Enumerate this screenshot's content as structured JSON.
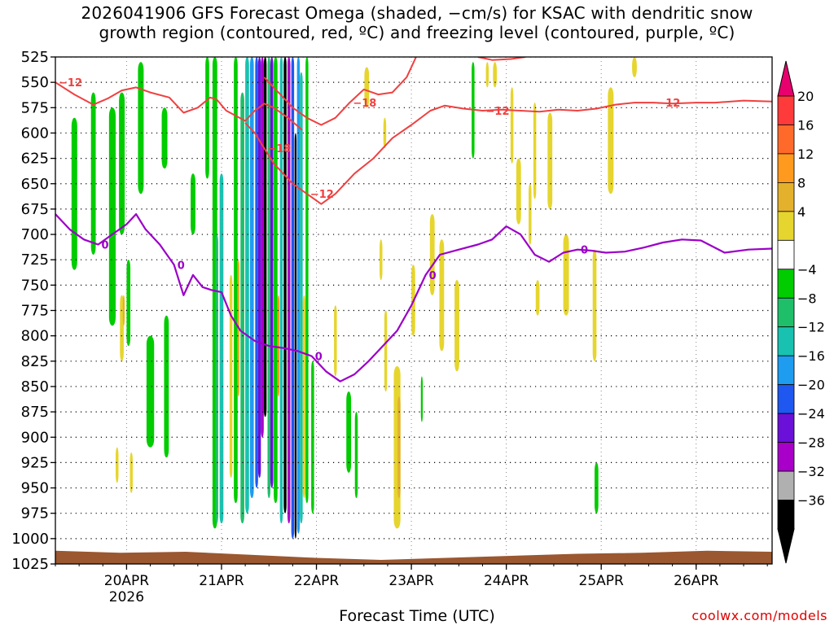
{
  "chart_data": {
    "type": "heatmap",
    "title_line1": "2026041906 GFS Forecast Omega (shaded, −cm/s) for KSAC with dendritic snow",
    "title_line2": "growth region (contoured, red, ºC) and freezing level (contoured, purple, ºC)",
    "xlabel": "Forecast Time (UTC)",
    "ylabel": "",
    "credit": "coolwx.com/models",
    "y_axis": {
      "ticks": [
        "525",
        "550",
        "575",
        "600",
        "625",
        "650",
        "675",
        "700",
        "725",
        "750",
        "775",
        "800",
        "825",
        "850",
        "875",
        "900",
        "925",
        "950",
        "975",
        "1000",
        "1025"
      ],
      "range": [
        525,
        1025
      ],
      "units": "hPa"
    },
    "x_axis": {
      "ticks": [
        "20APR",
        "21APR",
        "22APR",
        "23APR",
        "24APR",
        "25APR",
        "26APR"
      ],
      "year_label": "2026",
      "range_days": [
        -0.75,
        6.8
      ]
    },
    "colorbar": {
      "labels": [
        "20",
        "16",
        "12",
        "8",
        "4",
        "−4",
        "−8",
        "−12",
        "−16",
        "−20",
        "−24",
        "−28",
        "−32",
        "−36"
      ],
      "colors": [
        "#ff3a3a",
        "#ff6a2a",
        "#ff9a1e",
        "#e3b12c",
        "#e6d52e",
        "#ffffff",
        "#00cc00",
        "#1fbf6a",
        "#19c2b0",
        "#1e9cf0",
        "#1e58f0",
        "#6a10d8",
        "#a800c8",
        "#b0b0b0",
        "#000000"
      ],
      "arrow_top": "#e8006e",
      "arrow_bottom": "#000000"
    },
    "omega_cells": [
      {
        "day": -0.55,
        "w": 0.06,
        "p0": 585,
        "p1": 735,
        "v": -8
      },
      {
        "day": -0.35,
        "w": 0.05,
        "p0": 560,
        "p1": 720,
        "v": -8
      },
      {
        "day": -0.15,
        "w": 0.07,
        "p0": 575,
        "p1": 790,
        "v": -8
      },
      {
        "day": -0.05,
        "w": 0.06,
        "p0": 560,
        "p1": 700,
        "v": -8
      },
      {
        "day": 0.02,
        "w": 0.04,
        "p0": 725,
        "p1": 810,
        "v": -8
      },
      {
        "day": 0.15,
        "w": 0.06,
        "p0": 530,
        "p1": 660,
        "v": -8
      },
      {
        "day": 0.25,
        "w": 0.08,
        "p0": 800,
        "p1": 910,
        "v": -8
      },
      {
        "day": 0.4,
        "w": 0.06,
        "p0": 575,
        "p1": 635,
        "v": -8
      },
      {
        "day": 0.42,
        "w": 0.05,
        "p0": 780,
        "p1": 920,
        "v": -8
      },
      {
        "day": -0.05,
        "w": 0.04,
        "p0": 760,
        "p1": 825,
        "v": 4
      },
      {
        "day": -0.03,
        "w": 0.02,
        "p0": 760,
        "p1": 790,
        "v": 8
      },
      {
        "day": -0.1,
        "w": 0.03,
        "p0": 910,
        "p1": 945,
        "v": 4
      },
      {
        "day": 0.05,
        "w": 0.03,
        "p0": 915,
        "p1": 955,
        "v": 4
      },
      {
        "day": 0.7,
        "w": 0.05,
        "p0": 640,
        "p1": 700,
        "v": -8
      },
      {
        "day": 0.85,
        "w": 0.04,
        "p0": 525,
        "p1": 645,
        "v": -8
      },
      {
        "day": 0.93,
        "w": 0.05,
        "p0": 525,
        "p1": 990,
        "v": -8
      },
      {
        "day": 0.95,
        "w": 0.03,
        "p0": 700,
        "p1": 985,
        "v": -12
      },
      {
        "day": 1.0,
        "w": 0.04,
        "p0": 640,
        "p1": 985,
        "v": -16
      },
      {
        "day": 1.1,
        "w": 0.03,
        "p0": 740,
        "p1": 940,
        "v": 4
      },
      {
        "day": 1.15,
        "w": 0.04,
        "p0": 525,
        "p1": 965,
        "v": -8
      },
      {
        "day": 1.18,
        "w": 0.02,
        "p0": 725,
        "p1": 860,
        "v": 8
      },
      {
        "day": 1.22,
        "w": 0.04,
        "p0": 560,
        "p1": 985,
        "v": -12
      },
      {
        "day": 1.27,
        "w": 0.04,
        "p0": 525,
        "p1": 975,
        "v": -16
      },
      {
        "day": 1.32,
        "w": 0.04,
        "p0": 525,
        "p1": 960,
        "v": -20
      },
      {
        "day": 1.37,
        "w": 0.03,
        "p0": 525,
        "p1": 950,
        "v": -24
      },
      {
        "day": 1.4,
        "w": 0.03,
        "p0": 525,
        "p1": 940,
        "v": -28
      },
      {
        "day": 1.43,
        "w": 0.03,
        "p0": 525,
        "p1": 900,
        "v": -32
      },
      {
        "day": 1.46,
        "w": 0.03,
        "p0": 525,
        "p1": 880,
        "v": -36
      },
      {
        "day": 1.5,
        "w": 0.03,
        "p0": 525,
        "p1": 960,
        "v": -12
      },
      {
        "day": 1.53,
        "w": 0.03,
        "p0": 525,
        "p1": 950,
        "v": -28
      },
      {
        "day": 1.57,
        "w": 0.04,
        "p0": 525,
        "p1": 965,
        "v": -8
      },
      {
        "day": 1.6,
        "w": 0.02,
        "p0": 760,
        "p1": 860,
        "v": 12
      },
      {
        "day": 1.63,
        "w": 0.03,
        "p0": 525,
        "p1": 985,
        "v": -16
      },
      {
        "day": 1.67,
        "w": 0.03,
        "p0": 525,
        "p1": 975,
        "v": -36
      },
      {
        "day": 1.71,
        "w": 0.03,
        "p0": 525,
        "p1": 985,
        "v": -32
      },
      {
        "day": 1.75,
        "w": 0.03,
        "p0": 525,
        "p1": 1000,
        "v": -24
      },
      {
        "day": 1.78,
        "w": 0.02,
        "p0": 600,
        "p1": 1000,
        "v": -36
      },
      {
        "day": 1.81,
        "w": 0.03,
        "p0": 525,
        "p1": 995,
        "v": -20
      },
      {
        "day": 1.84,
        "w": 0.03,
        "p0": 540,
        "p1": 985,
        "v": -16
      },
      {
        "day": 1.87,
        "w": 0.03,
        "p0": 760,
        "p1": 960,
        "v": 4
      },
      {
        "day": 1.9,
        "w": 0.03,
        "p0": 525,
        "p1": 965,
        "v": -8
      },
      {
        "day": 1.96,
        "w": 0.03,
        "p0": 825,
        "p1": 975,
        "v": -8
      },
      {
        "day": 2.2,
        "w": 0.03,
        "p0": 770,
        "p1": 840,
        "v": 4
      },
      {
        "day": 2.34,
        "w": 0.05,
        "p0": 855,
        "p1": 935,
        "v": -8
      },
      {
        "day": 2.42,
        "w": 0.03,
        "p0": 875,
        "p1": 960,
        "v": -8
      },
      {
        "day": 2.53,
        "w": 0.05,
        "p0": 535,
        "p1": 575,
        "v": 4
      },
      {
        "day": 2.68,
        "w": 0.03,
        "p0": 705,
        "p1": 745,
        "v": 4
      },
      {
        "day": 2.72,
        "w": 0.03,
        "p0": 585,
        "p1": 615,
        "v": 4
      },
      {
        "day": 2.73,
        "w": 0.03,
        "p0": 775,
        "p1": 855,
        "v": 4
      },
      {
        "day": 2.85,
        "w": 0.07,
        "p0": 830,
        "p1": 990,
        "v": 4
      },
      {
        "day": 2.87,
        "w": 0.03,
        "p0": 860,
        "p1": 960,
        "v": 8
      },
      {
        "day": 3.02,
        "w": 0.04,
        "p0": 730,
        "p1": 800,
        "v": 4
      },
      {
        "day": 3.22,
        "w": 0.05,
        "p0": 680,
        "p1": 760,
        "v": 4
      },
      {
        "day": 3.32,
        "w": 0.05,
        "p0": 705,
        "p1": 815,
        "v": 4
      },
      {
        "day": 3.48,
        "w": 0.05,
        "p0": 745,
        "p1": 835,
        "v": 4
      },
      {
        "day": 3.65,
        "w": 0.03,
        "p0": 530,
        "p1": 625,
        "v": -8
      },
      {
        "day": 3.8,
        "w": 0.03,
        "p0": 530,
        "p1": 555,
        "v": 4
      },
      {
        "day": 3.88,
        "w": 0.04,
        "p0": 530,
        "p1": 555,
        "v": 4
      },
      {
        "day": 4.06,
        "w": 0.03,
        "p0": 555,
        "p1": 630,
        "v": 4
      },
      {
        "day": 4.13,
        "w": 0.05,
        "p0": 625,
        "p1": 690,
        "v": 4
      },
      {
        "day": 4.25,
        "w": 0.03,
        "p0": 650,
        "p1": 710,
        "v": 4
      },
      {
        "day": 4.3,
        "w": 0.03,
        "p0": 570,
        "p1": 665,
        "v": 4
      },
      {
        "day": 4.33,
        "w": 0.04,
        "p0": 745,
        "p1": 780,
        "v": 4
      },
      {
        "day": 4.46,
        "w": 0.05,
        "p0": 580,
        "p1": 675,
        "v": 4
      },
      {
        "day": 4.63,
        "w": 0.06,
        "p0": 700,
        "p1": 780,
        "v": 4
      },
      {
        "day": 4.93,
        "w": 0.04,
        "p0": 715,
        "p1": 825,
        "v": 4
      },
      {
        "day": 5.1,
        "w": 0.06,
        "p0": 555,
        "p1": 660,
        "v": 4
      },
      {
        "day": 5.35,
        "w": 0.05,
        "p0": 525,
        "p1": 545,
        "v": 4
      },
      {
        "day": 3.11,
        "w": 0.02,
        "p0": 840,
        "p1": 885,
        "v": -8
      },
      {
        "day": 4.95,
        "w": 0.04,
        "p0": 925,
        "p1": 975,
        "v": -8
      }
    ],
    "contours": {
      "dgz": [
        {
          "label": "−12",
          "points": [
            [
              -0.75,
              550
            ],
            [
              -0.55,
              562
            ],
            [
              -0.35,
              572
            ],
            [
              -0.2,
              566
            ],
            [
              -0.05,
              558
            ],
            [
              0.1,
              555
            ],
            [
              0.25,
              560
            ],
            [
              0.45,
              565
            ],
            [
              0.6,
              580
            ],
            [
              0.75,
              575
            ],
            [
              0.88,
              565
            ],
            [
              0.95,
              567
            ],
            [
              1.05,
              578
            ],
            [
              1.15,
              583
            ],
            [
              1.25,
              588
            ],
            [
              1.35,
              578
            ],
            [
              1.45,
              571
            ],
            [
              1.55,
              575
            ],
            [
              1.7,
              585
            ],
            [
              1.85,
              597
            ]
          ]
        },
        {
          "label": "−18",
          "points": [
            [
              1.25,
              590
            ],
            [
              1.35,
              600
            ],
            [
              1.45,
              615
            ],
            [
              1.55,
              630
            ],
            [
              1.65,
              640
            ],
            [
              1.75,
              650
            ]
          ]
        },
        {
          "label": "−12",
          "points": [
            [
              1.75,
              650
            ],
            [
              1.9,
              660
            ],
            [
              2.05,
              670
            ],
            [
              2.2,
              660
            ],
            [
              2.4,
              640
            ],
            [
              2.6,
              625
            ],
            [
              2.8,
              605
            ],
            [
              3.0,
              592
            ],
            [
              3.2,
              578
            ],
            [
              3.35,
              573
            ],
            [
              3.55,
              576
            ],
            [
              3.75,
              578
            ],
            [
              3.95,
              577
            ],
            [
              4.15,
              578
            ],
            [
              4.35,
              579
            ],
            [
              4.55,
              577
            ],
            [
              4.75,
              578
            ],
            [
              4.95,
              576
            ],
            [
              5.15,
              572
            ],
            [
              5.35,
              570
            ],
            [
              5.55,
              570
            ],
            [
              5.75,
              571
            ],
            [
              6.0,
              570
            ],
            [
              6.2,
              570
            ],
            [
              6.5,
              568
            ],
            [
              6.8,
              569
            ]
          ]
        },
        {
          "label": "−18",
          "points": [
            [
              1.45,
              545
            ],
            [
              1.6,
              560
            ],
            [
              1.75,
              575
            ],
            [
              1.9,
              585
            ],
            [
              2.05,
              592
            ],
            [
              2.2,
              585
            ],
            [
              2.35,
              570
            ],
            [
              2.5,
              557
            ],
            [
              2.65,
              562
            ],
            [
              2.8,
              560
            ],
            [
              2.95,
              545
            ],
            [
              3.05,
              525
            ]
          ]
        },
        {
          "label": "",
          "points": [
            [
              3.7,
              525
            ],
            [
              3.85,
              528
            ],
            [
              4.05,
              527
            ],
            [
              4.2,
              525
            ]
          ]
        }
      ],
      "freezing": [
        {
          "label": "0",
          "points": [
            [
              -0.75,
              680
            ],
            [
              -0.6,
              695
            ],
            [
              -0.45,
              705
            ],
            [
              -0.3,
              710
            ],
            [
              -0.15,
              700
            ],
            [
              0.0,
              690
            ],
            [
              0.1,
              680
            ],
            [
              0.2,
              695
            ],
            [
              0.35,
              710
            ],
            [
              0.5,
              730
            ],
            [
              0.6,
              760
            ],
            [
              0.7,
              740
            ],
            [
              0.8,
              752
            ],
            [
              0.9,
              755
            ],
            [
              1.0,
              757
            ],
            [
              1.1,
              780
            ],
            [
              1.2,
              795
            ],
            [
              1.35,
              805
            ],
            [
              1.5,
              810
            ],
            [
              1.65,
              812
            ],
            [
              1.8,
              815
            ],
            [
              1.95,
              820
            ],
            [
              2.1,
              835
            ],
            [
              2.25,
              845
            ],
            [
              2.4,
              838
            ],
            [
              2.55,
              825
            ],
            [
              2.7,
              810
            ],
            [
              2.85,
              795
            ],
            [
              3.0,
              770
            ],
            [
              3.15,
              740
            ],
            [
              3.3,
              720
            ],
            [
              3.5,
              715
            ],
            [
              3.7,
              710
            ],
            [
              3.85,
              705
            ],
            [
              4.0,
              692
            ],
            [
              4.15,
              700
            ],
            [
              4.3,
              720
            ],
            [
              4.45,
              727
            ],
            [
              4.6,
              718
            ],
            [
              4.75,
              715
            ],
            [
              4.9,
              716
            ],
            [
              5.05,
              718
            ],
            [
              5.25,
              717
            ],
            [
              5.45,
              713
            ],
            [
              5.65,
              708
            ],
            [
              5.85,
              705
            ],
            [
              6.05,
              706
            ],
            [
              6.3,
              718
            ],
            [
              6.55,
              715
            ],
            [
              6.8,
              714
            ]
          ]
        }
      ]
    },
    "ground": {
      "color": "#9a5730",
      "surface_hpa": [
        1012,
        1014,
        1013,
        1016,
        1019,
        1021,
        1019,
        1017,
        1015,
        1014,
        1012,
        1013
      ]
    }
  }
}
